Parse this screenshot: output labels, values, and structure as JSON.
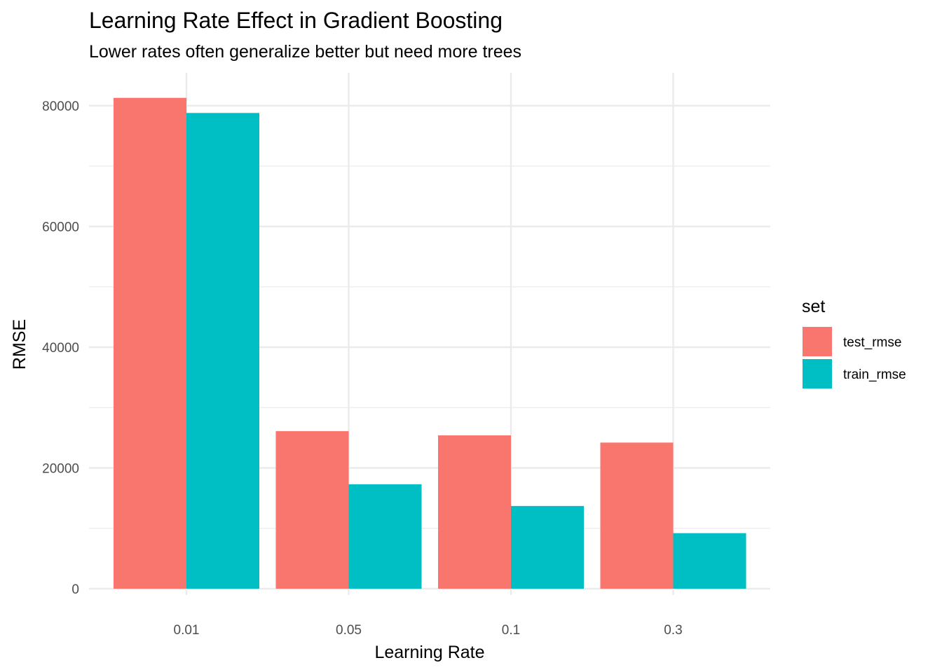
{
  "chart_data": {
    "type": "bar",
    "title": "Learning Rate Effect in Gradient Boosting",
    "subtitle": "Lower rates often generalize better but need more trees",
    "xlabel": "Learning Rate",
    "ylabel": "RMSE",
    "categories": [
      "0.01",
      "0.05",
      "0.1",
      "0.3"
    ],
    "series": [
      {
        "name": "test_rmse",
        "color": "#F8766D",
        "values": [
          81300,
          26100,
          25400,
          24200
        ]
      },
      {
        "name": "train_rmse",
        "color": "#00BFC4",
        "values": [
          78800,
          17300,
          13700,
          9200
        ]
      }
    ],
    "ylim": [
      0,
      85500
    ],
    "yticks": [
      0,
      20000,
      40000,
      60000,
      80000
    ],
    "ytick_labels": [
      "0",
      "20000",
      "40000",
      "60000",
      "80000"
    ],
    "grid": true,
    "legend": {
      "title": "set",
      "position": "right"
    }
  }
}
